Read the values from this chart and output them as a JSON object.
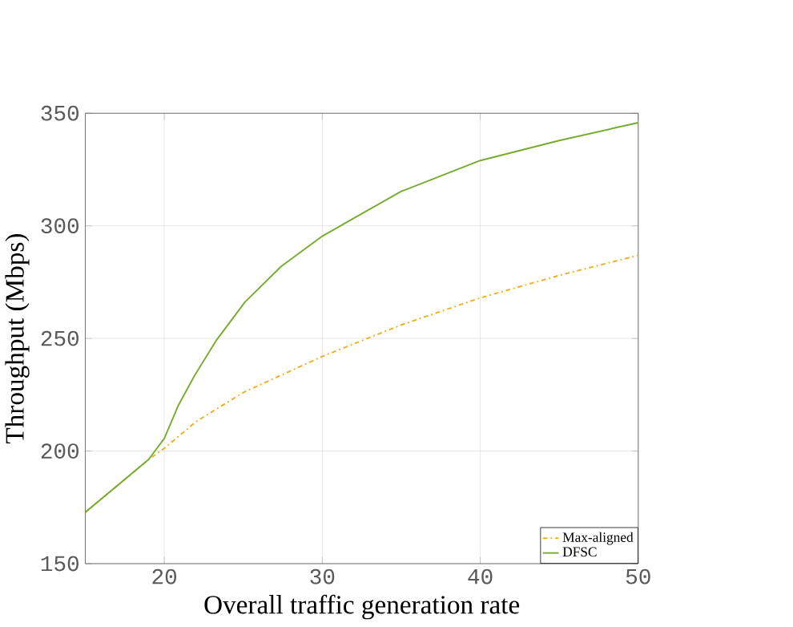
{
  "chart_data": {
    "type": "line",
    "xlabel": "Overall traffic generation rate",
    "ylabel": "Throughput (Mbps)",
    "xlim": [
      15,
      50
    ],
    "ylim": [
      150,
      350
    ],
    "xticks": [
      20,
      30,
      40,
      50
    ],
    "yticks": [
      150,
      200,
      250,
      300,
      350
    ],
    "grid": true,
    "legend": "bottom right",
    "marker": "none",
    "series": [
      {
        "name": "Max-aligned",
        "color": "#edb120",
        "line_style": "dashed",
        "x": [
          15,
          19,
          20,
          22,
          25,
          27.5,
          30,
          35,
          40,
          45,
          50
        ],
        "values": [
          172.8,
          196.2,
          201.2,
          213,
          226,
          234,
          242,
          256,
          268,
          278,
          286.9
        ]
      },
      {
        "name": "DFSC",
        "color": "#77ac30",
        "line_style": "solid",
        "x": [
          15,
          19,
          20,
          20.9,
          21.9,
          23.3,
          25.1,
          27.4,
          30,
          32.4,
          35,
          40,
          45,
          50
        ],
        "values": [
          172.8,
          196.2,
          205.6,
          220.4,
          233.3,
          249.2,
          266.1,
          282,
          295.4,
          305,
          315.3,
          329,
          337.9,
          345.8
        ]
      }
    ]
  }
}
